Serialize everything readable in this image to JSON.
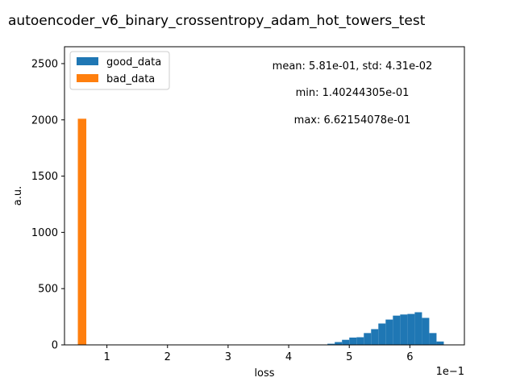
{
  "chart_data": {
    "type": "bar",
    "title": "autoencoder_v6_binary_crossentropy_adam_hot_towers_test",
    "xlabel": "loss",
    "ylabel": "a.u.",
    "x_offset_label": "1e−1",
    "xlim": [
      0.3,
      6.9
    ],
    "ylim": [
      0,
      2650
    ],
    "x_ticks": [
      1,
      2,
      3,
      4,
      5,
      6
    ],
    "y_ticks": [
      0,
      500,
      1000,
      1500,
      2000,
      2500
    ],
    "grid": false,
    "legend_position": "top-left",
    "series": [
      {
        "name": "good_data",
        "color": "#1f77b4",
        "bins": [
          {
            "x0": 4.52,
            "x1": 4.64,
            "value": 2
          },
          {
            "x0": 4.64,
            "x1": 4.76,
            "value": 10
          },
          {
            "x0": 4.76,
            "x1": 4.88,
            "value": 25
          },
          {
            "x0": 4.88,
            "x1": 5.0,
            "value": 45
          },
          {
            "x0": 5.0,
            "x1": 5.12,
            "value": 65
          },
          {
            "x0": 5.12,
            "x1": 5.24,
            "value": 68
          },
          {
            "x0": 5.24,
            "x1": 5.36,
            "value": 105
          },
          {
            "x0": 5.36,
            "x1": 5.48,
            "value": 140
          },
          {
            "x0": 5.48,
            "x1": 5.6,
            "value": 190
          },
          {
            "x0": 5.6,
            "x1": 5.72,
            "value": 225
          },
          {
            "x0": 5.72,
            "x1": 5.84,
            "value": 260
          },
          {
            "x0": 5.84,
            "x1": 5.96,
            "value": 270
          },
          {
            "x0": 5.96,
            "x1": 6.08,
            "value": 275
          },
          {
            "x0": 6.08,
            "x1": 6.2,
            "value": 290
          },
          {
            "x0": 6.2,
            "x1": 6.32,
            "value": 240
          },
          {
            "x0": 6.32,
            "x1": 6.44,
            "value": 105
          },
          {
            "x0": 6.44,
            "x1": 6.56,
            "value": 30
          }
        ]
      },
      {
        "name": "bad_data",
        "color": "#ff7f0e",
        "bins": [
          {
            "x0": 0.52,
            "x1": 0.66,
            "value": 2010
          }
        ]
      }
    ],
    "annotations": [
      "mean: 5.81e-01, std: 4.31e-02",
      "min: 1.40244305e-01",
      "max: 6.62154078e-01"
    ]
  }
}
